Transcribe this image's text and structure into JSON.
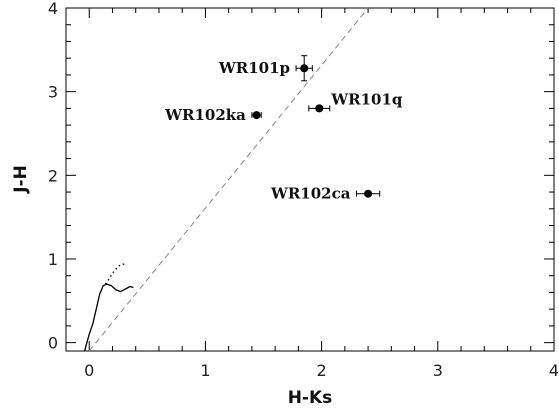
{
  "chart_data": {
    "type": "scatter",
    "title": "",
    "xlabel": "H-Ks",
    "ylabel": "J-H",
    "xlim": [
      -0.2,
      4.0
    ],
    "ylim": [
      -0.1,
      4.0
    ],
    "xticks": [
      0,
      1,
      2,
      3,
      4
    ],
    "yticks": [
      0,
      1,
      2,
      3,
      4
    ],
    "grid": false,
    "points": [
      {
        "label": "WR101p",
        "x": 1.85,
        "y": 3.28,
        "xerr": 0.07,
        "yerr": 0.15,
        "label_side": "left"
      },
      {
        "label": "WR102ka",
        "x": 1.44,
        "y": 2.72,
        "xerr": 0.04,
        "yerr": 0.02,
        "label_side": "left"
      },
      {
        "label": "WR101q",
        "x": 1.98,
        "y": 2.8,
        "xerr": 0.09,
        "yerr": 0.03,
        "label_side": "right-above"
      },
      {
        "label": "WR102ca",
        "x": 2.4,
        "y": 1.78,
        "xerr": 0.1,
        "yerr": 0.02,
        "label_side": "left"
      }
    ],
    "reddening_line": {
      "style": "dashed",
      "x": [
        0.0,
        2.4
      ],
      "y": [
        -0.1,
        4.0
      ]
    },
    "intrinsic_curve_solid": {
      "x": [
        -0.04,
        -0.02,
        0.0,
        0.03,
        0.06,
        0.09,
        0.12,
        0.15,
        0.19,
        0.23,
        0.27,
        0.31,
        0.35,
        0.38
      ],
      "y": [
        -0.1,
        0.0,
        0.1,
        0.22,
        0.4,
        0.58,
        0.68,
        0.7,
        0.68,
        0.63,
        0.61,
        0.64,
        0.67,
        0.66
      ]
    },
    "intrinsic_curve_dotted": {
      "x": [
        0.14,
        0.17,
        0.2,
        0.23,
        0.26,
        0.29,
        0.31
      ],
      "y": [
        0.7,
        0.76,
        0.83,
        0.88,
        0.92,
        0.94,
        0.93
      ]
    }
  }
}
